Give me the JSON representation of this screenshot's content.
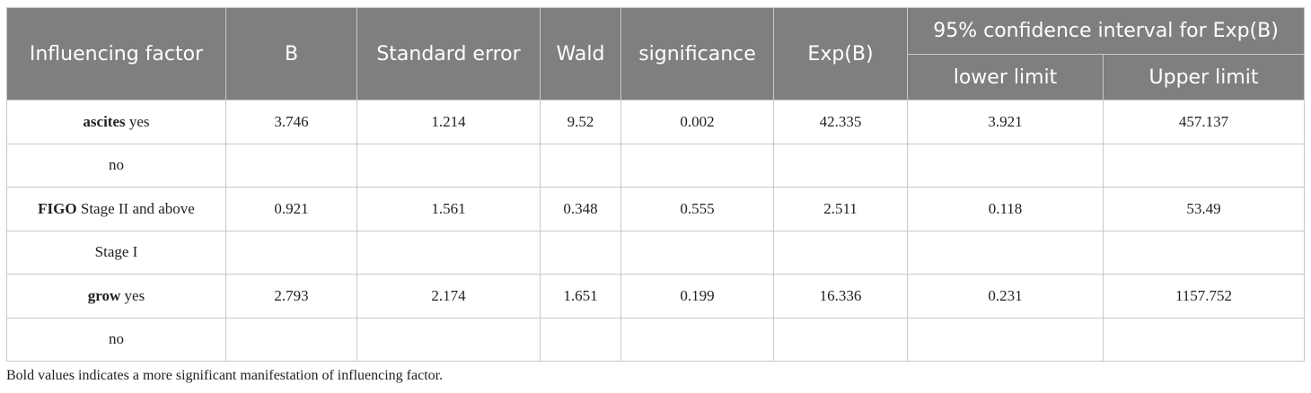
{
  "table": {
    "header": [
      "Influencing factor",
      "B",
      "Standard error",
      "Wald",
      "significance",
      "Exp(B)"
    ],
    "group_header": "95% confidence interval for Exp(B)",
    "subheader": [
      "lower limit",
      "Upper limit"
    ],
    "rows": [
      {
        "factor": {
          "bold": "ascites",
          "text": "yes"
        },
        "cells": [
          3.746,
          1.214,
          9.52,
          0.002,
          42.335,
          3.921,
          457.137
        ]
      },
      {
        "factor": {
          "text": "no"
        },
        "cells": [
          null,
          null,
          null,
          null,
          null,
          null,
          null
        ]
      },
      {
        "factor": {
          "bold": "FIGO",
          "text": "Stage II and above"
        },
        "cells": [
          0.921,
          1.561,
          0.348,
          0.555,
          2.511,
          0.118,
          53.49
        ]
      },
      {
        "factor": {
          "text": "Stage I"
        },
        "cells": [
          null,
          null,
          null,
          null,
          null,
          null,
          null
        ]
      },
      {
        "factor": {
          "bold": "grow",
          "text": "yes"
        },
        "cells": [
          2.793,
          2.174,
          1.651,
          0.199,
          16.336,
          0.231,
          1157.752
        ]
      },
      {
        "factor": {
          "text": "no"
        },
        "cells": [
          null,
          null,
          null,
          null,
          null,
          null,
          null
        ]
      }
    ]
  },
  "footnote": "Bold values indicates a more significant manifestation of influencing factor."
}
